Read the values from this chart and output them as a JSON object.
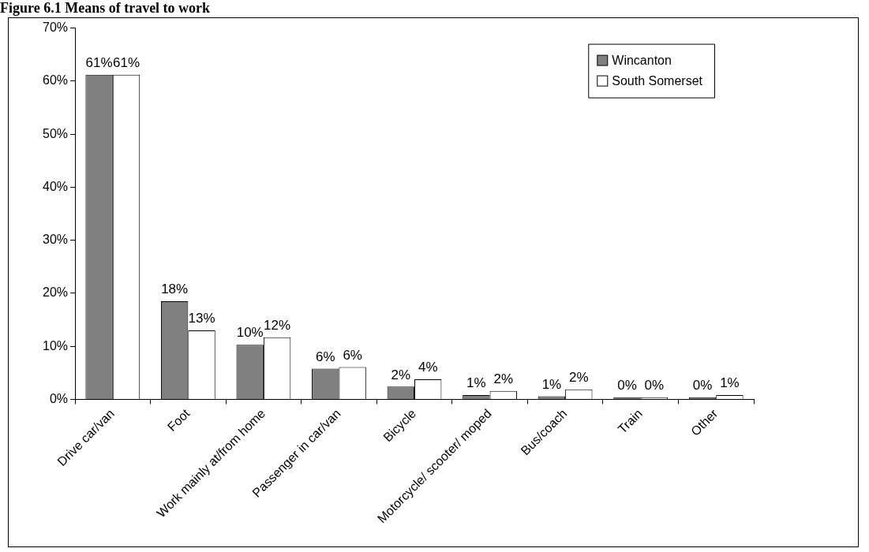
{
  "chart_data": {
    "type": "bar",
    "title": "Figure 6.1 Means of travel to work",
    "categories": [
      "Drive car/van",
      "Foot",
      "Work mainly at/from home",
      "Passenger in car/van",
      "Bicycle",
      "Motorcycle/ scooter/ moped",
      "Bus/coach",
      "Train",
      "Other"
    ],
    "series": [
      {
        "name": "Wincanton",
        "color": "#808080",
        "values": [
          61.2,
          18.5,
          10.3,
          5.8,
          2.4,
          0.8,
          0.6,
          0.4,
          0.4
        ],
        "value_labels": [
          "61%",
          "18%",
          "10%",
          "6%",
          "2%",
          "1%",
          "1%",
          "0%",
          "0%"
        ]
      },
      {
        "name": "South Somerset",
        "color": "#ffffff",
        "values": [
          61.2,
          13.0,
          11.7,
          6.1,
          3.8,
          1.6,
          1.9,
          0.4,
          0.8
        ],
        "value_labels": [
          "61%",
          "13%",
          "12%",
          "6%",
          "4%",
          "2%",
          "2%",
          "0%",
          "1%"
        ]
      }
    ],
    "ylim": [
      0,
      70
    ],
    "yticks": [
      {
        "value": 0,
        "label": "0%"
      },
      {
        "value": 10,
        "label": "10%"
      },
      {
        "value": 20,
        "label": "20%"
      },
      {
        "value": 30,
        "label": "30%"
      },
      {
        "value": 40,
        "label": "40%"
      },
      {
        "value": 50,
        "label": "50%"
      },
      {
        "value": 60,
        "label": "60%"
      },
      {
        "value": 70,
        "label": "70%"
      }
    ],
    "grid": false,
    "legend": "top right"
  }
}
